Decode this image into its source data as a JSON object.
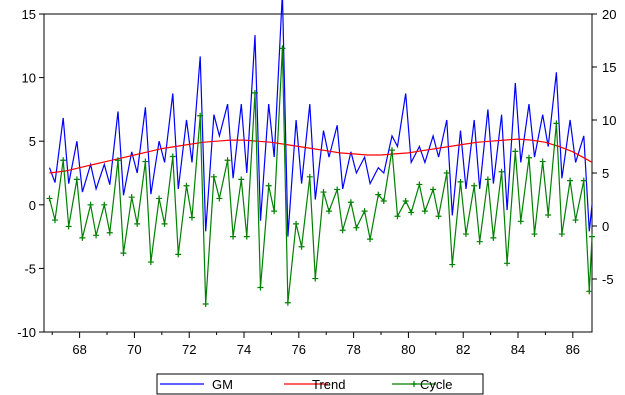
{
  "chart_data": {
    "type": "line",
    "x_ticks": [
      68,
      70,
      72,
      74,
      76,
      78,
      80,
      82,
      84,
      86
    ],
    "xlim": [
      66.7,
      86.7
    ],
    "left_axis": {
      "ticks": [
        -10,
        -5,
        0,
        5,
        10,
        15
      ],
      "ylim": [
        -10,
        15
      ]
    },
    "right_axis": {
      "ticks": [
        -5,
        0,
        5,
        10,
        15,
        20
      ],
      "ylim": [
        -10,
        20
      ]
    },
    "legend_position": "bottom-center",
    "series": [
      {
        "name": "GM",
        "axis": "right",
        "color": "#0000ff",
        "points": [
          [
            66.9,
            5.5
          ],
          [
            67.1,
            4.1
          ],
          [
            67.4,
            10.2
          ],
          [
            67.6,
            4.0
          ],
          [
            67.9,
            8.0
          ],
          [
            68.1,
            3.2
          ],
          [
            68.4,
            5.8
          ],
          [
            68.6,
            3.5
          ],
          [
            68.9,
            5.8
          ],
          [
            69.1,
            3.9
          ],
          [
            69.4,
            10.8
          ],
          [
            69.6,
            2.9
          ],
          [
            69.9,
            7.0
          ],
          [
            70.1,
            5.0
          ],
          [
            70.4,
            11.2
          ],
          [
            70.6,
            3.0
          ],
          [
            70.9,
            8.0
          ],
          [
            71.1,
            6.0
          ],
          [
            71.4,
            12.5
          ],
          [
            71.6,
            3.5
          ],
          [
            71.9,
            10.0
          ],
          [
            72.1,
            6.0
          ],
          [
            72.4,
            16.0
          ],
          [
            72.6,
            -0.5
          ],
          [
            72.9,
            10.5
          ],
          [
            73.1,
            8.5
          ],
          [
            73.4,
            11.5
          ],
          [
            73.6,
            4.5
          ],
          [
            73.9,
            11.5
          ],
          [
            74.1,
            5.0
          ],
          [
            74.4,
            18.0
          ],
          [
            74.6,
            0.5
          ],
          [
            74.9,
            11.5
          ],
          [
            75.1,
            6.5
          ],
          [
            75.4,
            22.0
          ],
          [
            75.6,
            -1.0
          ],
          [
            75.9,
            10.0
          ],
          [
            76.1,
            4.0
          ],
          [
            76.4,
            11.5
          ],
          [
            76.6,
            2.5
          ],
          [
            76.9,
            9.0
          ],
          [
            77.1,
            6.5
          ],
          [
            77.4,
            9.5
          ],
          [
            77.6,
            3.5
          ],
          [
            77.9,
            7.0
          ],
          [
            78.1,
            5.0
          ],
          [
            78.4,
            6.5
          ],
          [
            78.6,
            4.0
          ],
          [
            78.9,
            5.5
          ],
          [
            79.1,
            5.0
          ],
          [
            79.4,
            8.5
          ],
          [
            79.6,
            7.5
          ],
          [
            79.9,
            12.5
          ],
          [
            80.1,
            6.0
          ],
          [
            80.4,
            7.5
          ],
          [
            80.6,
            6.0
          ],
          [
            80.9,
            8.5
          ],
          [
            81.1,
            6.5
          ],
          [
            81.4,
            10.0
          ],
          [
            81.6,
            1.0
          ],
          [
            81.9,
            9.0
          ],
          [
            82.1,
            3.5
          ],
          [
            82.4,
            10.0
          ],
          [
            82.6,
            3.5
          ],
          [
            82.9,
            11.0
          ],
          [
            83.1,
            4.0
          ],
          [
            83.4,
            10.5
          ],
          [
            83.6,
            1.5
          ],
          [
            83.9,
            13.5
          ],
          [
            84.1,
            6.0
          ],
          [
            84.4,
            11.5
          ],
          [
            84.6,
            6.5
          ],
          [
            84.9,
            10.5
          ],
          [
            85.1,
            7.5
          ],
          [
            85.4,
            14.5
          ],
          [
            85.6,
            4.5
          ],
          [
            85.9,
            10.0
          ],
          [
            86.1,
            6.0
          ],
          [
            86.4,
            8.5
          ],
          [
            86.6,
            -0.5
          ],
          [
            86.7,
            2.0
          ]
        ]
      },
      {
        "name": "Trend",
        "axis": "right",
        "color": "#ff0000",
        "points": [
          [
            66.9,
            5.0
          ],
          [
            67.5,
            5.2
          ],
          [
            68.0,
            5.5
          ],
          [
            68.5,
            5.8
          ],
          [
            69.0,
            6.1
          ],
          [
            69.5,
            6.4
          ],
          [
            70.0,
            6.7
          ],
          [
            70.5,
            7.0
          ],
          [
            71.0,
            7.3
          ],
          [
            71.5,
            7.5
          ],
          [
            72.0,
            7.7
          ],
          [
            72.5,
            7.9
          ],
          [
            73.0,
            8.0
          ],
          [
            73.5,
            8.1
          ],
          [
            74.0,
            8.1
          ],
          [
            74.5,
            8.0
          ],
          [
            75.0,
            7.9
          ],
          [
            75.5,
            7.7
          ],
          [
            76.0,
            7.5
          ],
          [
            76.5,
            7.3
          ],
          [
            77.0,
            7.1
          ],
          [
            77.5,
            6.9
          ],
          [
            78.0,
            6.8
          ],
          [
            78.5,
            6.7
          ],
          [
            79.0,
            6.7
          ],
          [
            79.5,
            6.8
          ],
          [
            80.0,
            6.9
          ],
          [
            80.5,
            7.1
          ],
          [
            81.0,
            7.3
          ],
          [
            81.5,
            7.5
          ],
          [
            82.0,
            7.7
          ],
          [
            82.5,
            7.9
          ],
          [
            83.0,
            8.0
          ],
          [
            83.5,
            8.1
          ],
          [
            84.0,
            8.2
          ],
          [
            84.5,
            8.1
          ],
          [
            85.0,
            7.9
          ],
          [
            85.5,
            7.5
          ],
          [
            86.0,
            7.0
          ],
          [
            86.5,
            6.3
          ],
          [
            86.7,
            6.0
          ]
        ]
      },
      {
        "name": "Cycle",
        "axis": "left",
        "color": "#008000",
        "points": [
          [
            66.9,
            0.5
          ],
          [
            67.1,
            -1.2
          ],
          [
            67.4,
            3.5
          ],
          [
            67.6,
            -1.7
          ],
          [
            67.9,
            2.0
          ],
          [
            68.1,
            -2.6
          ],
          [
            68.4,
            0.0
          ],
          [
            68.6,
            -2.4
          ],
          [
            68.9,
            0.0
          ],
          [
            69.1,
            -2.2
          ],
          [
            69.4,
            3.5
          ],
          [
            69.6,
            -3.8
          ],
          [
            69.9,
            0.6
          ],
          [
            70.1,
            -1.5
          ],
          [
            70.4,
            3.4
          ],
          [
            70.6,
            -4.5
          ],
          [
            70.9,
            0.5
          ],
          [
            71.1,
            -1.5
          ],
          [
            71.4,
            3.8
          ],
          [
            71.6,
            -3.9
          ],
          [
            71.9,
            1.5
          ],
          [
            72.1,
            -1.0
          ],
          [
            72.4,
            7.0
          ],
          [
            72.6,
            -7.8
          ],
          [
            72.9,
            2.2
          ],
          [
            73.1,
            0.5
          ],
          [
            73.4,
            3.5
          ],
          [
            73.6,
            -2.5
          ],
          [
            73.9,
            2.0
          ],
          [
            74.1,
            -2.5
          ],
          [
            74.4,
            8.8
          ],
          [
            74.6,
            -6.5
          ],
          [
            74.9,
            1.5
          ],
          [
            75.1,
            -0.5
          ],
          [
            75.4,
            12.3
          ],
          [
            75.6,
            -7.7
          ],
          [
            75.9,
            -1.5
          ],
          [
            76.1,
            -3.3
          ],
          [
            76.4,
            2.2
          ],
          [
            76.6,
            -5.8
          ],
          [
            76.9,
            1.0
          ],
          [
            77.1,
            -0.5
          ],
          [
            77.4,
            1.2
          ],
          [
            77.6,
            -2.0
          ],
          [
            77.9,
            0.2
          ],
          [
            78.1,
            -1.8
          ],
          [
            78.4,
            -0.5
          ],
          [
            78.6,
            -2.7
          ],
          [
            78.9,
            0.8
          ],
          [
            79.1,
            0.3
          ],
          [
            79.4,
            4.3
          ],
          [
            79.6,
            -0.9
          ],
          [
            79.9,
            0.3
          ],
          [
            80.1,
            -0.6
          ],
          [
            80.4,
            1.6
          ],
          [
            80.6,
            -0.5
          ],
          [
            80.9,
            1.2
          ],
          [
            81.1,
            -0.9
          ],
          [
            81.4,
            2.5
          ],
          [
            81.6,
            -4.7
          ],
          [
            81.9,
            1.8
          ],
          [
            82.1,
            -2.3
          ],
          [
            82.4,
            1.5
          ],
          [
            82.6,
            -2.9
          ],
          [
            82.9,
            2.0
          ],
          [
            83.1,
            -2.6
          ],
          [
            83.4,
            2.6
          ],
          [
            83.6,
            -4.6
          ],
          [
            83.9,
            4.2
          ],
          [
            84.1,
            -1.3
          ],
          [
            84.4,
            3.7
          ],
          [
            84.6,
            -2.3
          ],
          [
            84.9,
            3.4
          ],
          [
            85.1,
            -0.8
          ],
          [
            85.4,
            6.4
          ],
          [
            85.6,
            -2.3
          ],
          [
            85.9,
            1.9
          ],
          [
            86.1,
            -1.2
          ],
          [
            86.4,
            1.9
          ],
          [
            86.6,
            -6.8
          ],
          [
            86.7,
            -2.5
          ]
        ]
      }
    ]
  }
}
